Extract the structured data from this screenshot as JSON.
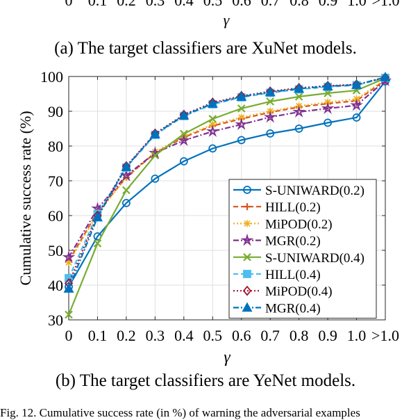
{
  "top_fragment": {
    "tick_labels": [
      "0",
      "0.1",
      "0.2",
      "0.3",
      "0.4",
      "0.5",
      "0.6",
      "0.7",
      "0.8",
      "0.9",
      "1.0",
      ">1.0"
    ],
    "xlabel": "γ"
  },
  "caption_a": "(a) The target classifiers are XuNet models.",
  "caption_b": "(b) The target classifiers are YeNet models.",
  "caption_cut": "Fig. 12.  Cumulative success rate (in %) of warning the adversarial examples",
  "chart_data": {
    "type": "line",
    "title": "",
    "xlabel": "γ",
    "ylabel": "Cumulative success rate (%)",
    "categories": [
      "0",
      "0.1",
      "0.2",
      "0.3",
      "0.4",
      "0.5",
      "0.6",
      "0.7",
      "0.8",
      "0.9",
      "1.0",
      ">1.0"
    ],
    "ylim": [
      30,
      100
    ],
    "yticks": [
      30,
      40,
      50,
      60,
      70,
      80,
      90,
      100
    ],
    "grid": true,
    "legend_position": "bottom-right",
    "series": [
      {
        "name": "S-UNIWARD(0.2)",
        "color": "#0072BD",
        "dash": "solid",
        "marker": "circle",
        "values": [
          39.5,
          54.0,
          63.6,
          70.6,
          75.6,
          79.3,
          81.7,
          83.6,
          85.0,
          86.7,
          88.2,
          98.6
        ]
      },
      {
        "name": "HILL(0.2)",
        "color": "#D95319",
        "dash": "dashed",
        "marker": "plus",
        "values": [
          47.0,
          61.0,
          71.0,
          78.0,
          82.5,
          85.8,
          87.8,
          89.7,
          91.2,
          92.2,
          93.0,
          99.0
        ]
      },
      {
        "name": "MiPOD(0.2)",
        "color": "#EDB120",
        "dash": "dotted",
        "marker": "asterisk",
        "values": [
          46.5,
          60.5,
          71.0,
          78.3,
          82.8,
          86.2,
          88.2,
          90.0,
          91.5,
          92.6,
          93.5,
          99.2
        ]
      },
      {
        "name": "MGR(0.2)",
        "color": "#7E2F8E",
        "dash": "dashdot",
        "marker": "star",
        "values": [
          48.0,
          62.0,
          71.5,
          78.0,
          81.6,
          84.2,
          86.2,
          88.3,
          89.8,
          90.8,
          91.7,
          98.8
        ]
      },
      {
        "name": "S-UNIWARD(0.4)",
        "color": "#77AC30",
        "dash": "solid",
        "marker": "x",
        "values": [
          31.5,
          52.0,
          67.3,
          77.3,
          83.5,
          87.8,
          90.8,
          92.8,
          94.2,
          95.2,
          96.0,
          99.5
        ]
      },
      {
        "name": "HILL(0.4)",
        "color": "#4DBEEE",
        "dash": "dashed",
        "marker": "square",
        "values": [
          42.0,
          60.5,
          73.8,
          83.2,
          88.6,
          92.0,
          94.0,
          95.3,
          96.3,
          97.0,
          97.5,
          99.6
        ]
      },
      {
        "name": "MiPOD(0.4)",
        "color": "#A2142F",
        "dash": "dotted",
        "marker": "diamond",
        "values": [
          40.5,
          60.0,
          74.2,
          83.6,
          89.0,
          92.5,
          94.4,
          95.7,
          96.7,
          97.3,
          97.7,
          99.7
        ]
      },
      {
        "name": "MGR(0.4)",
        "color": "#0072BD",
        "dash": "dashdot",
        "marker": "triangle",
        "values": [
          39.0,
          59.5,
          74.0,
          83.4,
          88.8,
          92.2,
          94.2,
          95.5,
          96.5,
          97.2,
          97.6,
          99.8
        ]
      }
    ]
  }
}
